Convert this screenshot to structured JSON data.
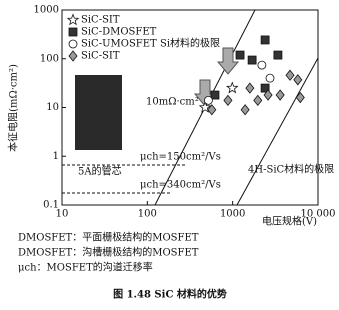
{
  "chart_data": {
    "type": "scatter",
    "x_label": "电压规格(V)",
    "y_label": "本征电阻(mΩ·cm²)",
    "xlim": [
      10,
      10000
    ],
    "ylim": [
      0.1,
      1000
    ],
    "xticks": [
      10,
      100,
      1000,
      {
        "value": 10000,
        "label": "10 000"
      }
    ],
    "yticks": [
      0.1,
      1,
      10,
      100,
      1000
    ],
    "log_x": true,
    "log_y": true,
    "legend": "upper left",
    "series": [
      {
        "name": "SiC-SIT",
        "marker": "star",
        "color": "#ffffff",
        "x": [
          990,
          475
        ],
        "values": [
          25,
          10
        ]
      },
      {
        "name": "SiC-DMOSFET",
        "marker": "square",
        "color": "#333333",
        "x": [
          1220,
          1690,
          2400,
          3390,
          2400,
          620
        ],
        "values": [
          119,
          94,
          243,
          119,
          25,
          18
        ]
      },
      {
        "name": "SiC-UMOSFET",
        "marker": "circle",
        "color": "#ffffff",
        "x": [
          2200,
          2740,
          520
        ],
        "values": [
          74,
          40,
          14
        ]
      },
      {
        "name": "SiC-SIT",
        "marker": "diamond",
        "color": "#9a9a9a",
        "x": [
          1590,
          1970,
          2600,
          3600,
          4700,
          5800,
          6200,
          1400,
          880,
          570
        ],
        "values": [
          25,
          14,
          18,
          18,
          46,
          37,
          16,
          9,
          14,
          9
        ]
      }
    ],
    "annotations": [
      "Si材料的极限",
      "10mΩ·cm²",
      "μch=150cm²/Vs",
      "μch=340cm²/Vs",
      "5A的管芯",
      "4H-SiC材料的极限"
    ]
  },
  "notes": [
    "DMOSFET：平面栅极结构的MOSFET",
    "DMOSFET：沟槽栅极结构的MOSFET",
    "μch：MOSFET的沟道迁移率"
  ],
  "caption": "图 1.48   SiC 材料的优势"
}
